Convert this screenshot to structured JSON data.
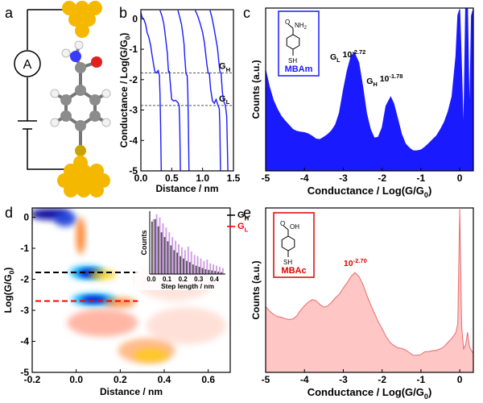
{
  "panel_labels": {
    "a": "a",
    "b": "b",
    "c": "c",
    "d": "d",
    "e": "e"
  },
  "panel_a": {
    "ammeter_symbol": "A",
    "colors": {
      "gold": "#f5b800",
      "carbon": "#8c8c8c",
      "hydrogen": "#f2f2f2",
      "oxygen": "#e02020",
      "nitrogen": "#3a3aff",
      "sulfur": "#c9a400",
      "wire": "#000000"
    }
  },
  "chart_data": [
    {
      "id": "b",
      "type": "line",
      "xlabel": "Distance / nm",
      "ylabel": "Conductance / Log(G/G",
      "ylabel_sub": "0",
      "ylabel_end": ")",
      "xlim": [
        0,
        1.5
      ],
      "ylim": [
        -5,
        0.3
      ],
      "xticks": [
        "0.0",
        "0.5",
        "1.0",
        "1.5"
      ],
      "xtick_values": [
        0,
        0.5,
        1.0,
        1.5
      ],
      "yticks": [
        "0",
        "-1",
        "-2",
        "-3",
        "-4",
        "-5"
      ],
      "ytick_values": [
        0,
        -1,
        -2,
        -3,
        -4,
        -5
      ],
      "series_color": "#1a1aff",
      "traces": [
        [
          [
            0.0,
            0.2
          ],
          [
            0.02,
            0.05
          ],
          [
            0.05,
            -0.02
          ],
          [
            0.08,
            -0.2
          ],
          [
            0.1,
            -0.45
          ],
          [
            0.13,
            -0.62
          ],
          [
            0.16,
            -0.9
          ],
          [
            0.18,
            -1.18
          ],
          [
            0.2,
            -1.42
          ],
          [
            0.21,
            -1.55
          ],
          [
            0.22,
            -1.68
          ],
          [
            0.23,
            -1.74
          ],
          [
            0.25,
            -1.78
          ],
          [
            0.28,
            -1.7
          ],
          [
            0.3,
            -1.86
          ],
          [
            0.31,
            -2.5
          ],
          [
            0.32,
            -3.5
          ],
          [
            0.33,
            -5.0
          ]
        ],
        [
          [
            0.31,
            0.28
          ],
          [
            0.34,
            0.1
          ],
          [
            0.37,
            -0.15
          ],
          [
            0.39,
            -0.45
          ],
          [
            0.41,
            -0.8
          ],
          [
            0.43,
            -1.15
          ],
          [
            0.44,
            -1.5
          ],
          [
            0.45,
            -1.78
          ],
          [
            0.46,
            -1.72
          ],
          [
            0.48,
            -2.2
          ],
          [
            0.5,
            -2.65
          ],
          [
            0.53,
            -2.7
          ],
          [
            0.56,
            -2.68
          ],
          [
            0.6,
            -2.75
          ],
          [
            0.62,
            -2.85
          ],
          [
            0.63,
            -3.5
          ],
          [
            0.64,
            -5.0
          ]
        ],
        [
          [
            0.6,
            0.28
          ],
          [
            0.63,
            0.05
          ],
          [
            0.66,
            -0.2
          ],
          [
            0.68,
            -0.5
          ],
          [
            0.7,
            -0.85
          ],
          [
            0.71,
            -1.2
          ],
          [
            0.72,
            -1.5
          ],
          [
            0.73,
            -1.78
          ],
          [
            0.74,
            -1.84
          ],
          [
            0.75,
            -1.86
          ],
          [
            0.76,
            -2.4
          ],
          [
            0.77,
            -3.5
          ],
          [
            0.78,
            -5.0
          ]
        ],
        [
          [
            0.88,
            0.28
          ],
          [
            0.92,
            0.1
          ],
          [
            0.96,
            -0.15
          ],
          [
            1.0,
            -0.45
          ],
          [
            1.03,
            -0.8
          ],
          [
            1.05,
            -1.15
          ],
          [
            1.07,
            -1.5
          ],
          [
            1.09,
            -1.78
          ],
          [
            1.11,
            -1.8
          ],
          [
            1.13,
            -2.3
          ],
          [
            1.16,
            -2.7
          ],
          [
            1.19,
            -2.78
          ],
          [
            1.22,
            -2.65
          ],
          [
            1.25,
            -2.85
          ],
          [
            1.27,
            -2.95
          ],
          [
            1.28,
            -3.5
          ],
          [
            1.29,
            -5.0
          ]
        ],
        [
          [
            1.12,
            0.28
          ],
          [
            1.15,
            0.05
          ],
          [
            1.18,
            -0.25
          ],
          [
            1.21,
            -0.6
          ],
          [
            1.24,
            -0.95
          ],
          [
            1.26,
            -1.35
          ],
          [
            1.28,
            -1.72
          ],
          [
            1.3,
            -1.8
          ],
          [
            1.32,
            -2.4
          ],
          [
            1.34,
            -2.7
          ],
          [
            1.37,
            -2.85
          ],
          [
            1.39,
            -3.2
          ],
          [
            1.4,
            -4.0
          ],
          [
            1.41,
            -5.0
          ]
        ]
      ],
      "reference_lines": [
        {
          "y": -1.78,
          "label": "G",
          "sub": "H"
        },
        {
          "y": -2.85,
          "label": "G",
          "sub": "L"
        }
      ]
    },
    {
      "id": "c",
      "type": "area",
      "xlabel": "Conductance / Log(G/G",
      "xlabel_sub": "0",
      "xlabel_end": ")",
      "ylabel": "Counts (a.u.)",
      "xlim": [
        -5,
        0.35
      ],
      "xticks": [
        "-5",
        "-4",
        "-3",
        "-2",
        "-1",
        "0"
      ],
      "xtick_values": [
        -5,
        -4,
        -3,
        -2,
        -1,
        0
      ],
      "fill_color": "#1a1aff",
      "x": [
        -5.0,
        -4.9,
        -4.8,
        -4.7,
        -4.6,
        -4.5,
        -4.4,
        -4.3,
        -4.2,
        -4.1,
        -4.0,
        -3.9,
        -3.8,
        -3.7,
        -3.6,
        -3.5,
        -3.4,
        -3.3,
        -3.2,
        -3.1,
        -3.0,
        -2.9,
        -2.8,
        -2.72,
        -2.6,
        -2.5,
        -2.4,
        -2.3,
        -2.2,
        -2.1,
        -2.0,
        -1.9,
        -1.78,
        -1.7,
        -1.6,
        -1.5,
        -1.4,
        -1.3,
        -1.2,
        -1.1,
        -1.0,
        -0.9,
        -0.8,
        -0.7,
        -0.6,
        -0.5,
        -0.4,
        -0.3,
        -0.2,
        -0.1,
        -0.05,
        0.0,
        0.05,
        0.1,
        0.15,
        0.2,
        0.25,
        0.3,
        0.35
      ],
      "values": [
        62,
        52,
        44,
        38,
        33,
        30,
        28,
        26,
        25,
        24,
        23,
        22,
        21,
        20,
        20,
        21,
        22,
        24,
        28,
        36,
        50,
        62,
        70,
        72,
        66,
        52,
        36,
        26,
        20,
        20,
        26,
        40,
        46,
        42,
        32,
        22,
        16,
        14,
        13,
        13,
        13,
        14,
        16,
        19,
        22,
        26,
        30,
        36,
        45,
        70,
        96,
        100,
        62,
        20,
        100,
        100,
        30,
        96,
        100
      ],
      "peak_labels": [
        {
          "x": -2.72,
          "label": "G",
          "sub": "L",
          "value_text": "10",
          "exp": "-2.72"
        },
        {
          "x": -1.78,
          "label": "G",
          "sub": "H",
          "value_text": "10",
          "exp": "-1.78"
        }
      ],
      "inset": {
        "label": "MBAm",
        "top_group": "NH",
        "top_sub": "2",
        "bottom_group": "SH",
        "border_color": "#1a1aff"
      }
    },
    {
      "id": "d",
      "type": "heatmap",
      "xlabel": "Distance / nm",
      "ylabel": "Log(G/G",
      "ylabel_sub": "0",
      "ylabel_end": ")",
      "xlim": [
        -0.2,
        0.7
      ],
      "ylim": [
        -5,
        0.3
      ],
      "xticks": [
        "-0.2",
        "0.0",
        "0.2",
        "0.4",
        "0.6"
      ],
      "xtick_values": [
        -0.2,
        0.0,
        0.2,
        0.4,
        0.6
      ],
      "yticks": [
        "0",
        "-1",
        "-2",
        "-3",
        "-4",
        "-5"
      ],
      "ytick_values": [
        0,
        -1,
        -2,
        -3,
        -4,
        -5
      ],
      "blobs": [
        {
          "x": -0.12,
          "y": 0.1,
          "rx": 0.09,
          "ry": 0.18,
          "color": "#1010a0",
          "opacity": 1.0
        },
        {
          "x": -0.05,
          "y": -0.05,
          "rx": 0.05,
          "ry": 0.25,
          "color": "#1a3fd9",
          "opacity": 0.9
        },
        {
          "x": 0.02,
          "y": -0.6,
          "rx": 0.02,
          "ry": 0.6,
          "color": "#ff6a00",
          "opacity": 0.8
        },
        {
          "x": 0.05,
          "y": -1.78,
          "rx": 0.08,
          "ry": 0.22,
          "color": "#00b8ff",
          "opacity": 0.95
        },
        {
          "x": 0.06,
          "y": -1.8,
          "rx": 0.05,
          "ry": 0.12,
          "color": "#0000c8",
          "opacity": 1.0
        },
        {
          "x": 0.12,
          "y": -1.85,
          "rx": 0.06,
          "ry": 0.16,
          "color": "#ffcc00",
          "opacity": 0.8
        },
        {
          "x": 0.08,
          "y": -2.65,
          "rx": 0.1,
          "ry": 0.2,
          "color": "#00b8ff",
          "opacity": 0.95
        },
        {
          "x": 0.08,
          "y": -2.65,
          "rx": 0.06,
          "ry": 0.1,
          "color": "#0000c8",
          "opacity": 1.0
        },
        {
          "x": 0.2,
          "y": -2.75,
          "rx": 0.07,
          "ry": 0.15,
          "color": "#ff6a00",
          "opacity": 0.7
        },
        {
          "x": 0.12,
          "y": -3.4,
          "rx": 0.16,
          "ry": 0.45,
          "color": "#ff3300",
          "opacity": 0.35
        },
        {
          "x": 0.32,
          "y": -4.3,
          "rx": 0.13,
          "ry": 0.4,
          "color": "#ff6a00",
          "opacity": 0.45
        },
        {
          "x": 0.34,
          "y": -4.45,
          "rx": 0.08,
          "ry": 0.22,
          "color": "#ffcc00",
          "opacity": 0.7
        },
        {
          "x": 0.45,
          "y": -2.0,
          "rx": 0.18,
          "ry": 0.7,
          "color": "#ffb3a0",
          "opacity": 0.35
        },
        {
          "x": 0.5,
          "y": -3.5,
          "rx": 0.18,
          "ry": 0.6,
          "color": "#ff9c80",
          "opacity": 0.3
        }
      ],
      "reference_lines": [
        {
          "y": -1.78,
          "color": "#000000",
          "label": "G",
          "sub": "H"
        },
        {
          "y": -2.7,
          "color": "#ff0000",
          "label": "G",
          "sub": "L"
        }
      ],
      "inset": {
        "type": "bar",
        "xlabel": "Step length / nm",
        "ylabel": "Counts",
        "xticks": [
          "0.0",
          "0.1",
          "0.2",
          "0.3",
          "0.4"
        ],
        "xtick_values": [
          0.0,
          0.1,
          0.2,
          0.3,
          0.4
        ],
        "xlim": [
          -0.01,
          0.47
        ],
        "x": [
          0.0,
          0.02,
          0.04,
          0.06,
          0.08,
          0.1,
          0.12,
          0.14,
          0.16,
          0.18,
          0.2,
          0.22,
          0.24,
          0.26,
          0.28,
          0.3,
          0.32,
          0.34,
          0.36,
          0.38,
          0.4,
          0.42,
          0.44
        ],
        "series": [
          {
            "name": "G",
            "sub": "H",
            "color": "#333333",
            "values": [
              88,
              92,
              80,
              70,
              62,
              55,
              48,
              40,
              36,
              30,
              26,
              22,
              20,
              16,
              14,
              12,
              10,
              8,
              7,
              6,
              5,
              4,
              3
            ]
          },
          {
            "name": "G",
            "sub": "L",
            "color": "#c58be0",
            "values": [
              92,
              100,
              95,
              85,
              78,
              70,
              62,
              56,
              50,
              45,
              40,
              46,
              38,
              32,
              30,
              26,
              22,
              24,
              18,
              16,
              14,
              12,
              10
            ]
          }
        ]
      }
    },
    {
      "id": "e",
      "type": "area",
      "xlabel": "Conductance / Log(G/G",
      "xlabel_sub": "0",
      "xlabel_end": ")",
      "ylabel": "Counts (a.u.)",
      "xlim": [
        -5,
        0.35
      ],
      "xticks": [
        "-5",
        "-4",
        "-3",
        "-2",
        "-1",
        "0"
      ],
      "xtick_values": [
        -5,
        -4,
        -3,
        -2,
        -1,
        0
      ],
      "fill_color": "#ffc6c6",
      "line_color": "#e86a6a",
      "x": [
        -5.0,
        -4.9,
        -4.8,
        -4.7,
        -4.6,
        -4.5,
        -4.4,
        -4.3,
        -4.2,
        -4.1,
        -4.0,
        -3.9,
        -3.8,
        -3.7,
        -3.6,
        -3.5,
        -3.4,
        -3.3,
        -3.2,
        -3.1,
        -3.0,
        -2.9,
        -2.8,
        -2.7,
        -2.6,
        -2.5,
        -2.4,
        -2.3,
        -2.2,
        -2.1,
        -2.0,
        -1.9,
        -1.8,
        -1.7,
        -1.6,
        -1.5,
        -1.4,
        -1.3,
        -1.2,
        -1.1,
        -1.0,
        -0.9,
        -0.8,
        -0.7,
        -0.6,
        -0.5,
        -0.4,
        -0.3,
        -0.2,
        -0.1,
        -0.05,
        0.0,
        0.05,
        0.1,
        0.15,
        0.2,
        0.25,
        0.3,
        0.35
      ],
      "values": [
        40,
        38,
        36,
        34,
        33,
        32,
        32,
        33,
        35,
        38,
        40,
        42,
        44,
        44,
        42,
        40,
        40,
        42,
        45,
        48,
        52,
        55,
        58,
        60,
        58,
        54,
        48,
        42,
        36,
        30,
        26,
        22,
        19,
        17,
        15,
        14,
        13,
        12,
        11,
        11,
        11,
        12,
        12,
        13,
        14,
        15,
        16,
        18,
        20,
        24,
        30,
        100,
        28,
        14,
        16,
        24,
        16,
        14,
        12
      ],
      "peak_labels": [
        {
          "x": -2.7,
          "value_text": "10",
          "exp": "-2.70",
          "color": "#e00000"
        }
      ],
      "inset": {
        "label": "MBAc",
        "top_group": "OH",
        "top_sub": "",
        "bottom_group": "SH",
        "border_color": "#e00000"
      }
    }
  ]
}
